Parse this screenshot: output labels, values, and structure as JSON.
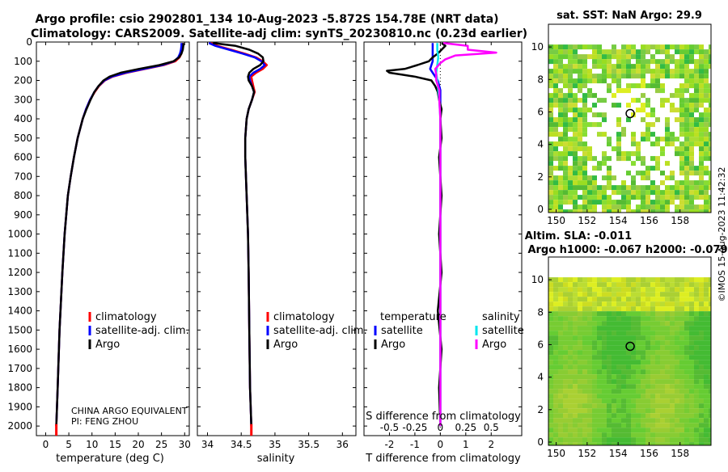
{
  "figure": {
    "title_line1": "Argo profile: csio 2902801_134 10-Aug-2023 -5.872S 154.78E (NRT data)",
    "title_line2": "Climatology: CARS2009. Satellite-adj clim: synTS_20230810.nc (0.23d earlier)",
    "stamp": "©IMOS 15-Aug-2023 11:42:32",
    "credit_line1": "CHINA ARGO EQUIVALENT",
    "credit_line2": "PI: FENG ZHOU"
  },
  "colors": {
    "climatology": "#ff0000",
    "satellite": "#0000ff",
    "argo": "#000000",
    "satellite_salinity": "#00e5ee",
    "argo_salinity": "#ff00ff"
  },
  "chart_data": [
    {
      "type": "line",
      "id": "temperature",
      "xlabel": "temperature (deg C)",
      "ylabel": "",
      "xlim": [
        -2,
        31
      ],
      "ylim": [
        2050,
        0
      ],
      "xticks": [
        0,
        5,
        10,
        15,
        20,
        25,
        30
      ],
      "xtick_labels": [
        "0",
        "5",
        "10",
        "15",
        "20",
        "25",
        "30"
      ],
      "yticks": [
        0,
        100,
        200,
        300,
        400,
        500,
        600,
        700,
        800,
        900,
        1000,
        1100,
        1200,
        1300,
        1400,
        1500,
        1600,
        1700,
        1800,
        1900,
        2000
      ],
      "ytick_labels": [
        "0",
        "100",
        "200",
        "300",
        "400",
        "500",
        "600",
        "700",
        "800",
        "900",
        "1000",
        "1100",
        "1200",
        "1300",
        "1400",
        "1500",
        "1600",
        "1700",
        "1800",
        "1900",
        "2000"
      ],
      "legend": [
        "climatology",
        "satellite-adj. clim.",
        "Argo"
      ],
      "legend_position": "lower-right",
      "series": [
        {
          "name": "climatology",
          "depth": [
            5,
            20,
            40,
            60,
            80,
            100,
            120,
            140,
            160,
            180,
            200,
            230,
            260,
            300,
            350,
            400,
            500,
            600,
            700,
            800,
            1000,
            1200,
            1500,
            1800,
            2000
          ],
          "values": [
            29.6,
            29.6,
            29.5,
            29.3,
            28.9,
            28.0,
            25.5,
            21.5,
            17.5,
            14.5,
            12.8,
            11.5,
            10.6,
            9.6,
            8.7,
            8.0,
            6.9,
            6.1,
            5.4,
            4.8,
            4.1,
            3.6,
            3.0,
            2.6,
            2.3
          ]
        },
        {
          "name": "satellite-adj. clim.",
          "depth": [
            5,
            20,
            40,
            60,
            80,
            100,
            120,
            140,
            160,
            180,
            200,
            230,
            260,
            300,
            350,
            400,
            500,
            600,
            700,
            800,
            1000,
            1200,
            1500,
            1800,
            2000
          ],
          "values": [
            29.3,
            29.3,
            29.2,
            29.0,
            28.6,
            27.7,
            25.2,
            21.2,
            17.2,
            14.3,
            12.7,
            11.4,
            10.5,
            9.6,
            8.7,
            8.0,
            6.9,
            6.1,
            5.4,
            4.8,
            4.1,
            3.6,
            3.0,
            2.6,
            2.3
          ]
        },
        {
          "name": "Argo",
          "depth": [
            5,
            20,
            40,
            60,
            80,
            100,
            120,
            140,
            160,
            180,
            200,
            230,
            260,
            300,
            350,
            400,
            500,
            600,
            700,
            800,
            1000,
            1200,
            1500,
            1800,
            2000
          ],
          "values": [
            29.7,
            29.7,
            29.6,
            29.3,
            28.8,
            27.6,
            24.6,
            20.1,
            16.2,
            13.8,
            12.5,
            11.4,
            10.5,
            9.7,
            8.8,
            8.0,
            6.9,
            6.1,
            5.4,
            4.8,
            4.1,
            3.6,
            3.0,
            2.6,
            2.3
          ]
        }
      ]
    },
    {
      "type": "line",
      "id": "salinity",
      "xlabel": "salinity",
      "xlim": [
        33.85,
        36.2
      ],
      "ylim": [
        2050,
        0
      ],
      "xticks": [
        34,
        34.5,
        35,
        35.5,
        36
      ],
      "xtick_labels": [
        "34",
        "34.5",
        "35",
        "35.5",
        "36"
      ],
      "legend": [
        "climatology",
        "satellite-adj. clim.",
        "Argo"
      ],
      "legend_position": "lower-right",
      "series": [
        {
          "name": "climatology",
          "depth": [
            5,
            20,
            40,
            60,
            80,
            100,
            120,
            140,
            160,
            180,
            200,
            230,
            260,
            300,
            350,
            400,
            500,
            600,
            800,
            1000,
            1200,
            1500,
            1800,
            2000
          ],
          "values": [
            34.05,
            34.15,
            34.35,
            34.55,
            34.72,
            34.82,
            34.88,
            34.82,
            34.72,
            34.65,
            34.66,
            34.68,
            34.7,
            34.66,
            34.61,
            34.58,
            34.56,
            34.56,
            34.58,
            34.6,
            34.61,
            34.62,
            34.63,
            34.65
          ]
        },
        {
          "name": "satellite-adj. clim.",
          "depth": [
            5,
            20,
            40,
            60,
            80,
            100,
            120,
            140,
            160,
            180,
            200,
            230,
            260,
            300,
            350,
            400,
            500,
            600,
            800,
            1000,
            1200,
            1500,
            1800,
            2000
          ],
          "values": [
            34.02,
            34.12,
            34.32,
            34.52,
            34.7,
            34.8,
            34.85,
            34.78,
            34.68,
            34.62,
            34.63,
            34.66,
            34.69,
            34.66,
            34.61,
            34.58,
            34.56,
            34.56,
            34.58,
            34.6,
            34.61,
            34.62,
            34.63,
            34.65
          ]
        },
        {
          "name": "Argo",
          "depth": [
            5,
            20,
            40,
            60,
            80,
            100,
            120,
            140,
            160,
            180,
            200,
            230,
            260,
            300,
            350,
            400,
            500,
            600,
            800,
            1000,
            1200,
            1500,
            1800,
            2000
          ],
          "values": [
            34.08,
            34.42,
            34.62,
            34.75,
            34.82,
            34.83,
            34.78,
            34.68,
            34.62,
            34.6,
            34.61,
            34.66,
            34.69,
            34.66,
            34.61,
            34.58,
            34.56,
            34.56,
            34.58,
            34.6,
            34.61,
            34.62,
            34.63,
            34.65
          ]
        }
      ]
    },
    {
      "type": "line",
      "id": "difference",
      "xlabel": "T difference from climatology",
      "top_xlabel": "S difference from climatology",
      "xlim": [
        -3,
        3.2
      ],
      "ylim": [
        2050,
        0
      ],
      "xticks": [
        -2,
        -1,
        0,
        1,
        2
      ],
      "xtick_labels": [
        "-2",
        "-1",
        "0",
        "1",
        "2"
      ],
      "s_xticks": [
        -0.5,
        -0.25,
        0,
        0.25,
        0.5
      ],
      "s_xtick_labels": [
        "-0.5",
        "-0.25",
        "0",
        "0.25",
        "0.5"
      ],
      "legend_temperature_heading": "temperature",
      "legend_salinity_heading": "salinity",
      "legend_temperature": [
        "satellite",
        "Argo"
      ],
      "legend_salinity": [
        "satellite",
        "Argo"
      ],
      "series": [
        {
          "name": "T satellite",
          "depth": [
            5,
            40,
            80,
            100,
            120,
            140,
            160,
            180,
            200,
            250,
            300,
            400,
            600,
            1000,
            1500,
            2000
          ],
          "values": [
            -0.3,
            -0.3,
            -0.3,
            -0.3,
            -0.35,
            -0.4,
            -0.3,
            -0.2,
            -0.1,
            0.0,
            0.0,
            0.0,
            0.0,
            0.0,
            0.0,
            0.0
          ]
        },
        {
          "name": "T Argo",
          "depth": [
            5,
            20,
            40,
            60,
            80,
            100,
            120,
            140,
            150,
            160,
            170,
            180,
            200,
            230,
            260,
            300,
            350,
            400,
            500,
            600,
            800,
            1000,
            1200,
            1400,
            1600,
            1800,
            2000
          ],
          "values": [
            0.05,
            0.2,
            0.05,
            -0.1,
            -0.3,
            -0.45,
            -0.9,
            -1.4,
            -2.1,
            -2.0,
            -1.5,
            -1.0,
            -0.35,
            -0.2,
            -0.1,
            -0.05,
            0.05,
            0.0,
            0.05,
            -0.05,
            0.05,
            -0.05,
            0.05,
            -0.1,
            0.05,
            -0.05,
            0.0
          ]
        },
        {
          "name": "S satellite",
          "depth": [
            5,
            40,
            80,
            120,
            160,
            200,
            250,
            300,
            400,
            600,
            1000,
            2000
          ],
          "values": [
            -0.03,
            -0.03,
            -0.02,
            -0.03,
            -0.04,
            -0.03,
            -0.02,
            -0.01,
            0.0,
            0.0,
            0.0,
            0.0
          ]
        },
        {
          "name": "S Argo",
          "depth": [
            5,
            20,
            40,
            55,
            70,
            90,
            110,
            140,
            170,
            200,
            250,
            300,
            400,
            600,
            1000,
            1500,
            2000
          ],
          "values": [
            0.03,
            0.27,
            0.27,
            0.55,
            0.15,
            0.05,
            0.0,
            -0.05,
            -0.04,
            -0.04,
            -0.01,
            -0.01,
            0.0,
            0.0,
            0.0,
            0.0,
            0.0
          ]
        }
      ]
    },
    {
      "type": "heatmap",
      "id": "sst_map",
      "title": "sat. SST: NaN Argo: 29.9",
      "xlim": [
        149.5,
        160
      ],
      "ylim": [
        -0.2,
        11.4
      ],
      "xticks": [
        150,
        152,
        154,
        156,
        158
      ],
      "yticks": [
        0,
        2,
        4,
        6,
        8,
        10
      ],
      "marker": {
        "x": 154.78,
        "y": 5.9
      }
    },
    {
      "type": "heatmap",
      "id": "sla_map",
      "title_line1": "Altim. SLA: -0.011",
      "title_line2": "Argo h1000: -0.067 h2000: -0.079",
      "xlim": [
        149.5,
        160
      ],
      "ylim": [
        -0.2,
        11.4
      ],
      "xticks": [
        150,
        152,
        154,
        156,
        158
      ],
      "yticks": [
        0,
        2,
        4,
        6,
        8,
        10
      ],
      "marker": {
        "x": 154.78,
        "y": 5.9
      }
    }
  ]
}
